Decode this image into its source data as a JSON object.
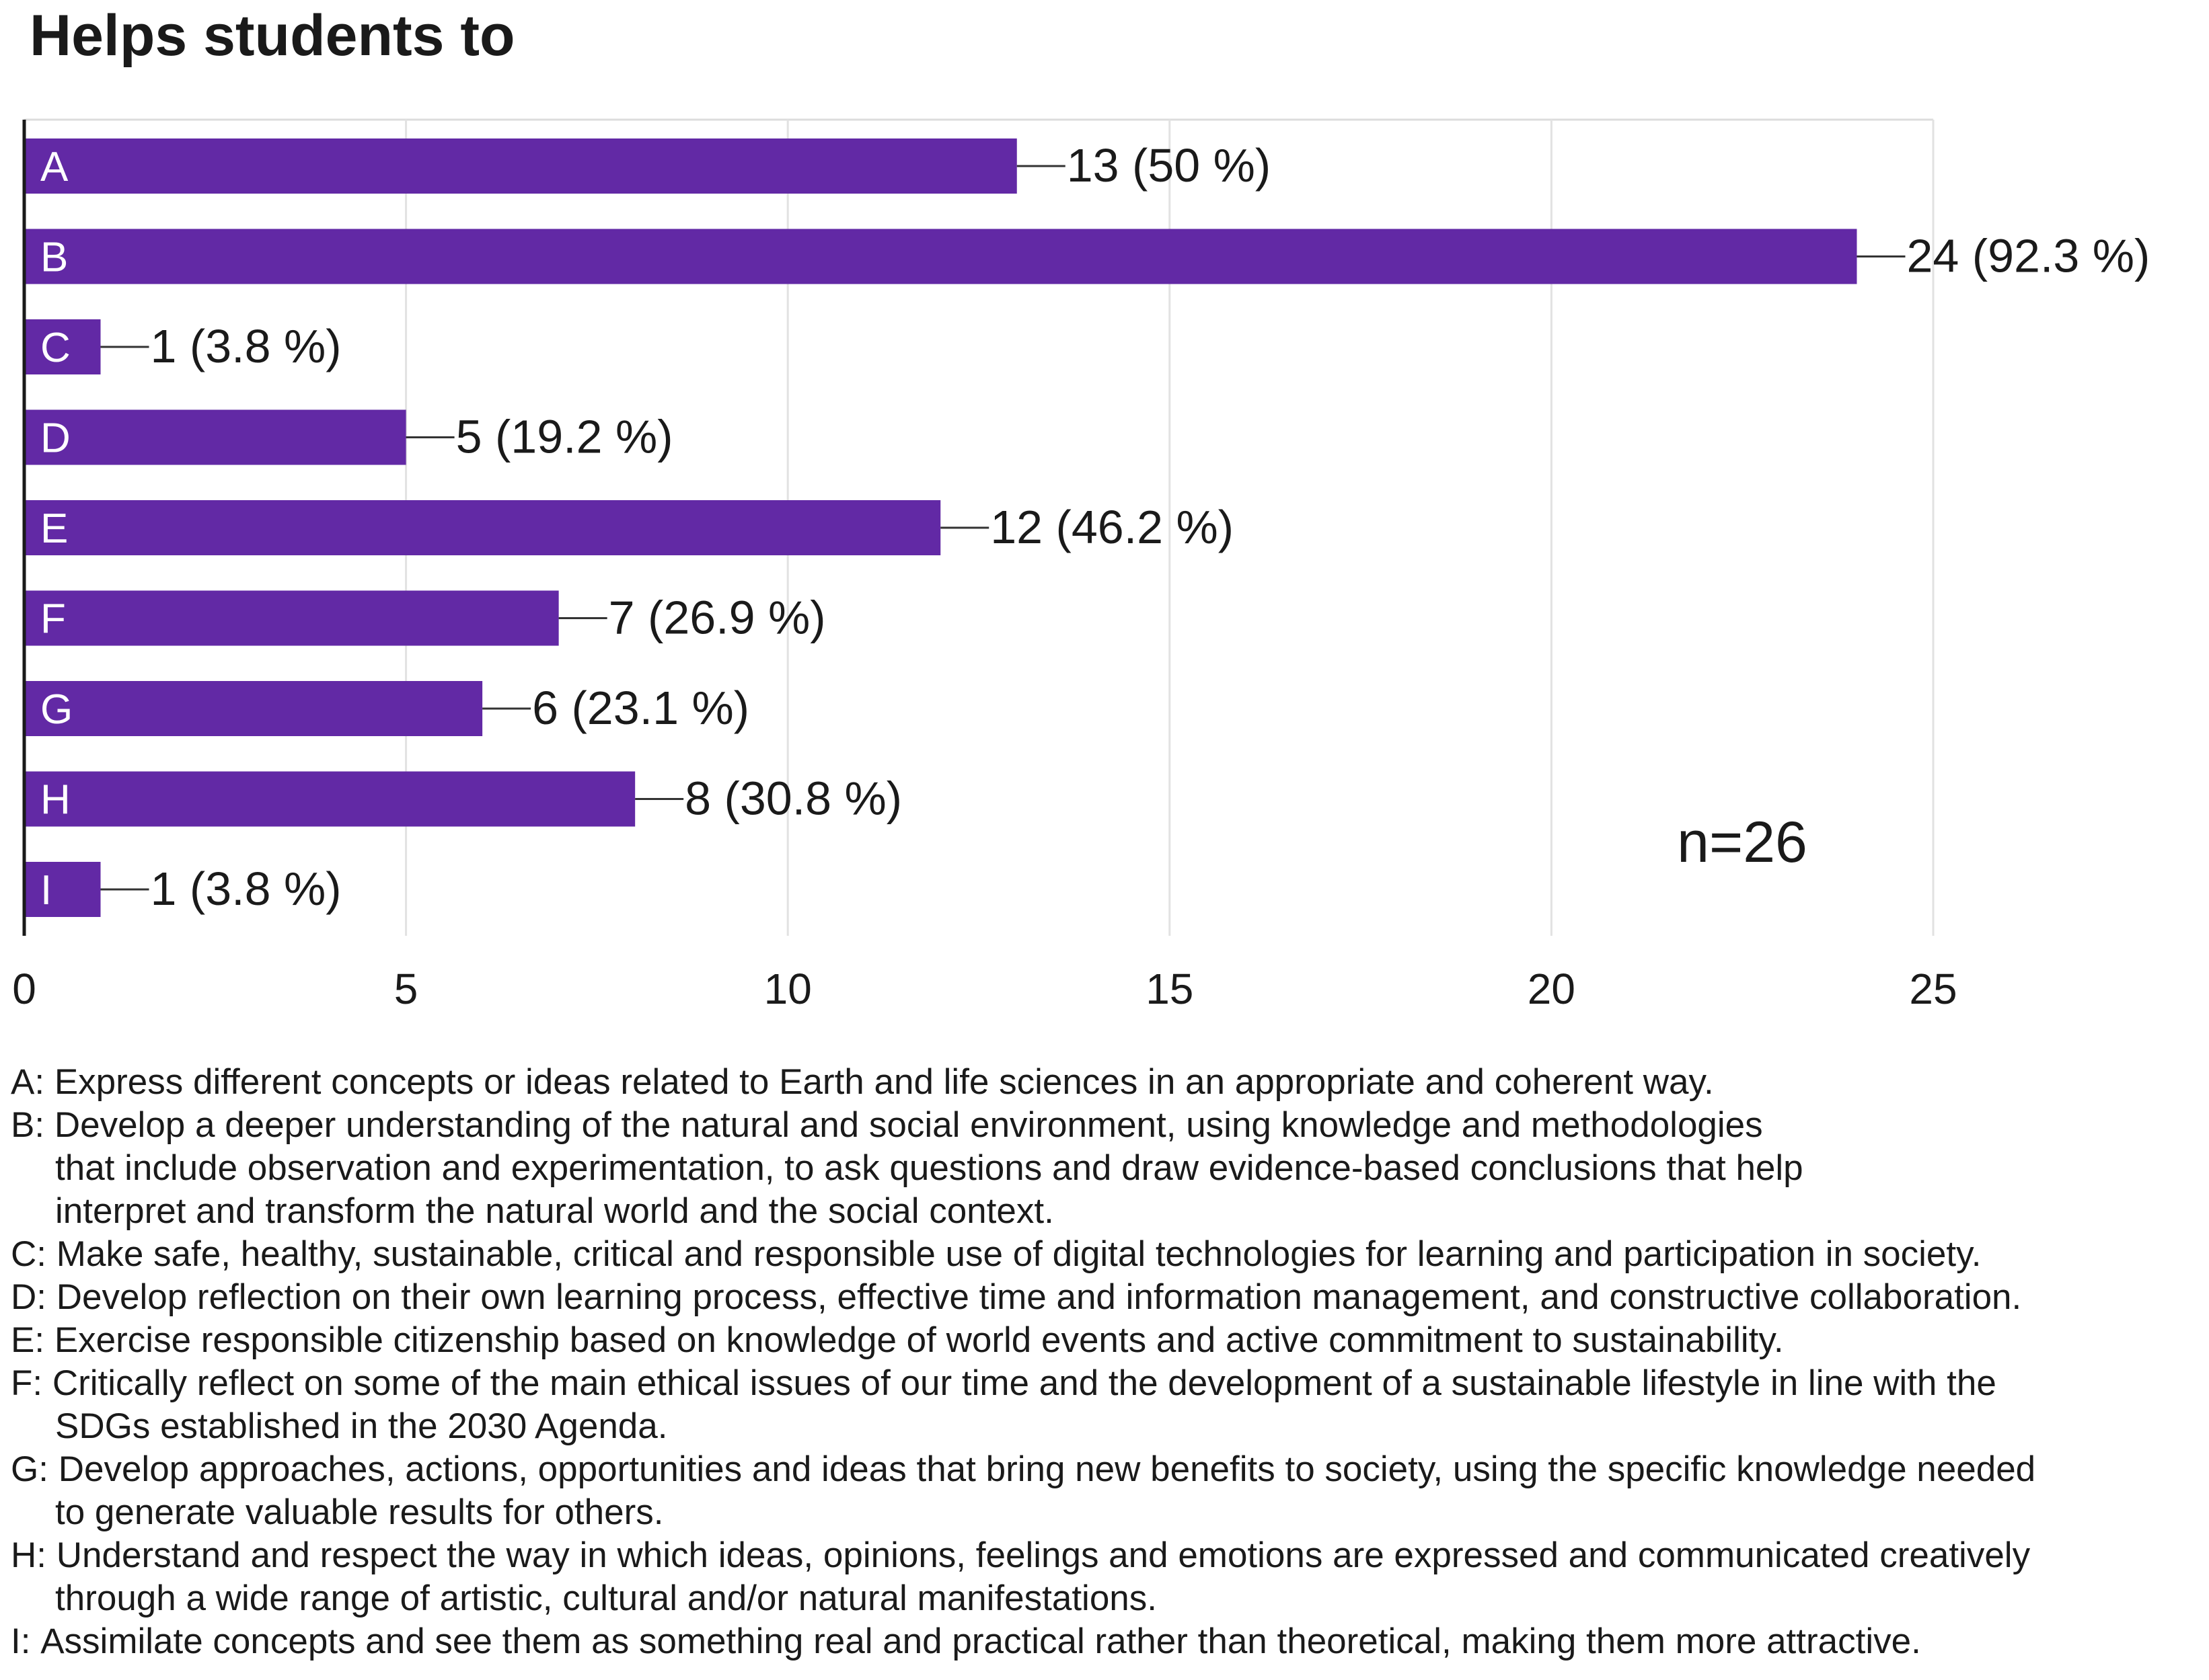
{
  "chart_data": {
    "type": "bar",
    "orientation": "horizontal",
    "title": "Helps students to",
    "categories": [
      "A",
      "B",
      "C",
      "D",
      "E",
      "F",
      "G",
      "H",
      "I"
    ],
    "values": [
      13,
      24,
      1,
      5,
      12,
      7,
      6,
      8,
      1
    ],
    "data_labels": [
      "13 (50 %)",
      "24 (92.3 %)",
      "1 (3.8 %)",
      "5 (19.2 %)",
      "12 (46.2 %)",
      "7 (26.9 %)",
      "6 (23.1 %)",
      "8 (30.8 %)",
      "1 (3.8 %)"
    ],
    "xlim": [
      0,
      25
    ],
    "x_ticks": [
      "0",
      "5",
      "10",
      "15",
      "20",
      "25"
    ],
    "xlabel": "",
    "ylabel": "",
    "grid": true,
    "annotation": "n=26",
    "bar_color": "#6229a5"
  },
  "legend": [
    {
      "key": "A:",
      "lines": [
        "Express different concepts or ideas related to Earth and life sciences in an appropriate and coherent way."
      ]
    },
    {
      "key": "B:",
      "lines": [
        "Develop a deeper understanding of the natural and social environment, using knowledge and methodologies",
        "that include observation and experimentation, to ask questions and draw evidence-based conclusions that help",
        "interpret and transform the natural world and the social context."
      ]
    },
    {
      "key": "C:",
      "lines": [
        "Make safe, healthy, sustainable, critical and responsible use of digital technologies for learning and participation in society."
      ]
    },
    {
      "key": "D:",
      "lines": [
        "Develop reflection on their own learning process, effective time and information management, and constructive collaboration."
      ]
    },
    {
      "key": "E:",
      "lines": [
        "Exercise responsible citizenship based on knowledge of world events and active commitment to sustainability."
      ]
    },
    {
      "key": "F:",
      "lines": [
        "Critically reflect on some of the main ethical issues of our time and the development of a sustainable lifestyle in line with the",
        "SDGs established in the 2030 Agenda."
      ]
    },
    {
      "key": "G:",
      "lines": [
        "Develop approaches, actions, opportunities and ideas that bring new benefits to society, using the specific knowledge needed",
        "to generate valuable results for others."
      ]
    },
    {
      "key": "H:",
      "lines": [
        "Understand and respect the way in which ideas, opinions, feelings and emotions are expressed and communicated creatively",
        "through a wide range of artistic, cultural and/or natural manifestations."
      ]
    },
    {
      "key": "I:",
      "lines": [
        "Assimilate concepts and see them as something real and practical rather than theoretical, making them more attractive."
      ]
    }
  ]
}
